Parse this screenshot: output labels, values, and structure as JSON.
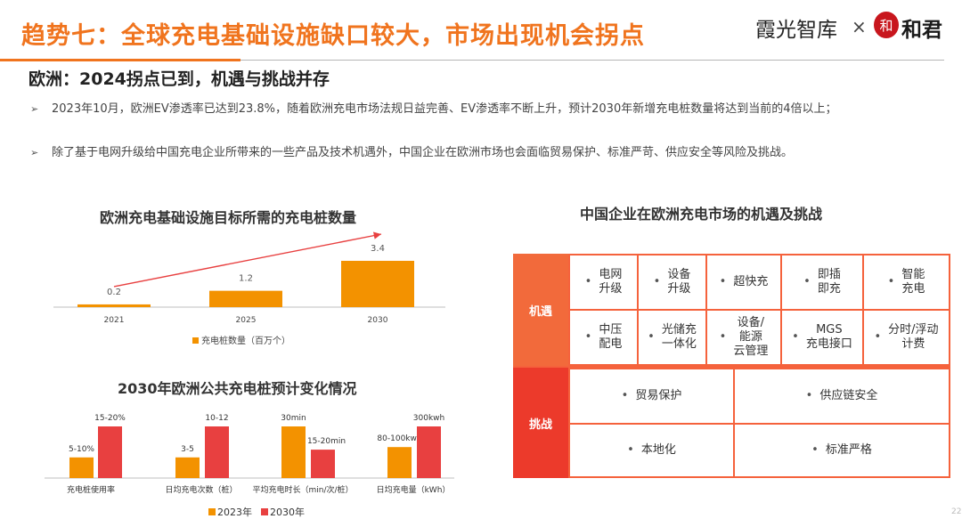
{
  "header": {
    "title": "趋势七：全球充电基础设施缺口较大，市场出现机会拐点",
    "brand": "霞光智库",
    "brand_separator": "×",
    "logo_seal": "和",
    "logo_text": "和君"
  },
  "subtitle": "欧洲：2024拐点已到，机遇与挑战并存",
  "bullets": [
    "2023年10月，欧洲EV渗透率已达到23.8%，随着欧洲充电市场法规日益完善、EV渗透率不断上升，预计2030年新增充电桩数量将达到当前的4倍以上；",
    "除了基于电网升级给中国充电企业所带来的一些产品及技术机遇外，中国企业在欧洲市场也会面临贸易保护、标准严苛、供应安全等风险及挑战。"
  ],
  "bullet_marker": "➢",
  "colors": {
    "accent": "#f0741e",
    "bar_2023": "#f39200",
    "bar_2030": "#e84040",
    "opp_head": "#f26a3b",
    "chal_head": "#ec3a2b",
    "grid_bg": "#f5623c"
  },
  "chart_data": [
    {
      "type": "bar",
      "title": "欧洲充电基础设施目标所需的充电桩数量",
      "categories": [
        "2021",
        "2025",
        "2030"
      ],
      "series": [
        {
          "name": "充电桩数量（百万个）",
          "values": [
            0.2,
            1.2,
            3.4
          ]
        }
      ],
      "data_labels": [
        "0.2",
        "1.2",
        "3.4"
      ],
      "ylim": [
        0,
        3.4
      ],
      "legend": "bottom",
      "trend_arrow": true
    },
    {
      "type": "bar",
      "title": "2030年欧洲公共充电桩预计变化情况",
      "categories": [
        "充电桩使用率",
        "日均充电次数（桩）",
        "平均充电时长（min/次/桩）",
        "日均充电量（kWh）"
      ],
      "series": [
        {
          "name": "2023年",
          "values": [
            0.4,
            0.4,
            1.0,
            0.6
          ]
        },
        {
          "name": "2030年",
          "values": [
            1.0,
            1.0,
            0.55,
            1.0
          ]
        }
      ],
      "data_labels": [
        [
          "5-10%",
          "3-5",
          "30min",
          "80-100kwh"
        ],
        [
          "15-20%",
          "10-12",
          "15-20min",
          "300kwh"
        ]
      ],
      "legend": "bottom"
    }
  ],
  "grid": {
    "title": "中国企业在欧洲充电市场的机遇及挑战",
    "opportunities_label": "机遇",
    "challenges_label": "挑战",
    "opportunities": [
      [
        "电网\n升级",
        "设备\n升级",
        "超快充",
        "即插\n即充",
        "智能\n充电"
      ],
      [
        "中压\n配电",
        "光储充\n一体化",
        "设备/\n能源\n云管理",
        "MGS\n充电接口",
        "分时/浮动\n计费"
      ]
    ],
    "challenges": [
      [
        "贸易保护",
        "供应链安全"
      ],
      [
        "本地化",
        "标准严格"
      ]
    ],
    "dot": "•"
  },
  "page_number": "22"
}
